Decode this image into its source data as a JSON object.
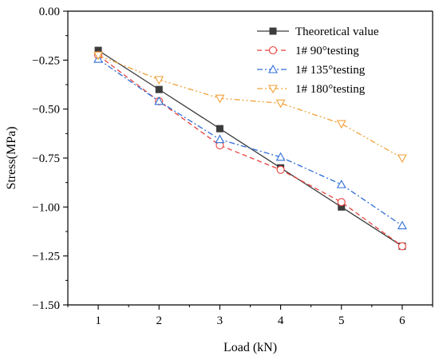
{
  "chart_data": {
    "type": "line",
    "xlabel": "Load (kN)",
    "ylabel": "Stress(MPa)",
    "xlim": [
      0.5,
      6.5
    ],
    "ylim": [
      -1.5,
      0.0
    ],
    "xticks": [
      1,
      2,
      3,
      4,
      5,
      6
    ],
    "xtick_labels": [
      "1",
      "2",
      "3",
      "4",
      "5",
      "6"
    ],
    "yticks": [
      0.0,
      -0.25,
      -0.5,
      -0.75,
      -1.0,
      -1.25,
      -1.5
    ],
    "ytick_labels": [
      "0.00",
      "−0.25",
      "−0.50",
      "−0.75",
      "−1.00",
      "−1.25",
      "−1.50"
    ],
    "grid": false,
    "legend_position": "top-right",
    "series": [
      {
        "name": "Theoretical value",
        "color": "#3c3c3c",
        "marker": "square-filled",
        "line": "solid",
        "x": [
          1,
          2,
          3,
          4,
          5,
          6
        ],
        "y": [
          -0.2,
          -0.4,
          -0.6,
          -0.8,
          -1.0,
          -1.2
        ]
      },
      {
        "name": "1# 90°testing",
        "color": "#e8413c",
        "marker": "circle-open",
        "line": "dash",
        "x": [
          1,
          2,
          3,
          4,
          5,
          6
        ],
        "y": [
          -0.225,
          -0.46,
          -0.685,
          -0.81,
          -0.975,
          -1.2
        ]
      },
      {
        "name": "1# 135°testing",
        "color": "#2f6ed6",
        "marker": "triangle-up-open",
        "line": "dashdot",
        "x": [
          1,
          2,
          3,
          4,
          5,
          6
        ],
        "y": [
          -0.245,
          -0.46,
          -0.655,
          -0.745,
          -0.885,
          -1.095
        ]
      },
      {
        "name": "1# 180°testing",
        "color": "#f0a23a",
        "marker": "triangle-down-open",
        "line": "dashdotdot",
        "x": [
          1,
          2,
          3,
          4,
          5,
          6
        ],
        "y": [
          -0.225,
          -0.35,
          -0.445,
          -0.47,
          -0.575,
          -0.75
        ]
      }
    ]
  }
}
